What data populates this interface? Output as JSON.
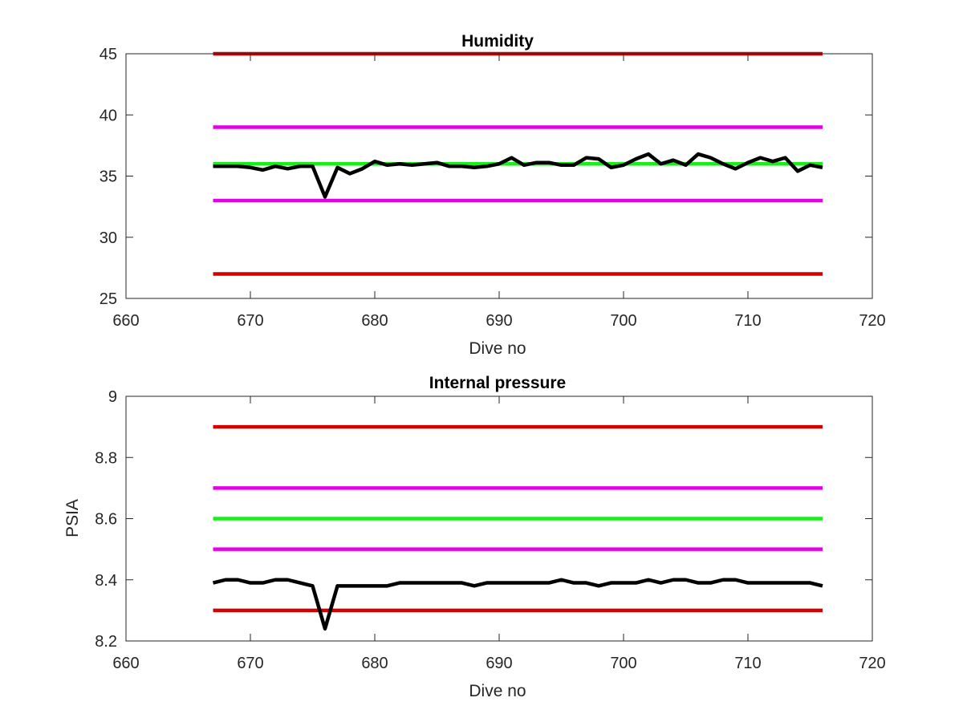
{
  "chart_data": [
    {
      "type": "line",
      "title": "Humidity",
      "xlabel": "Dive no",
      "ylabel": "",
      "xlim": [
        660,
        720
      ],
      "ylim": [
        25,
        45
      ],
      "xticks": [
        660,
        670,
        680,
        690,
        700,
        710,
        720
      ],
      "yticks": [
        25,
        30,
        35,
        40,
        45
      ],
      "grid": false,
      "series": [
        {
          "color": "#d40000",
          "x": [
            667,
            716
          ],
          "y": [
            45,
            45
          ]
        },
        {
          "color": "#e600e6",
          "x": [
            667,
            716
          ],
          "y": [
            39,
            39
          ]
        },
        {
          "color": "#1aee1a",
          "x": [
            667,
            716
          ],
          "y": [
            36,
            36
          ]
        },
        {
          "color": "#e600e6",
          "x": [
            667,
            716
          ],
          "y": [
            33,
            33
          ]
        },
        {
          "color": "#d40000",
          "x": [
            667,
            716
          ],
          "y": [
            27,
            27
          ]
        },
        {
          "color": "#000000",
          "x": [
            667,
            668,
            669,
            670,
            671,
            672,
            673,
            674,
            675,
            676,
            677,
            678,
            679,
            680,
            681,
            682,
            683,
            684,
            685,
            686,
            687,
            688,
            689,
            690,
            691,
            692,
            693,
            694,
            695,
            696,
            697,
            698,
            699,
            700,
            701,
            702,
            703,
            704,
            705,
            706,
            707,
            708,
            709,
            710,
            711,
            712,
            713,
            714,
            715,
            716
          ],
          "y": [
            35.8,
            35.8,
            35.8,
            35.7,
            35.5,
            35.8,
            35.6,
            35.8,
            35.8,
            33.3,
            35.7,
            35.2,
            35.6,
            36.2,
            35.9,
            36.0,
            35.9,
            36.0,
            36.1,
            35.8,
            35.8,
            35.7,
            35.8,
            36.0,
            36.5,
            35.9,
            36.1,
            36.1,
            35.9,
            35.9,
            36.5,
            36.4,
            35.7,
            35.9,
            36.4,
            36.8,
            36.0,
            36.3,
            35.9,
            36.8,
            36.5,
            36.0,
            35.6,
            36.1,
            36.5,
            36.2,
            36.5,
            35.4,
            35.9,
            35.7
          ]
        }
      ]
    },
    {
      "type": "line",
      "title": "Internal pressure",
      "xlabel": "Dive no",
      "ylabel": "PSIA",
      "xlim": [
        660,
        720
      ],
      "ylim": [
        8.2,
        9
      ],
      "xticks": [
        660,
        670,
        680,
        690,
        700,
        710,
        720
      ],
      "yticks": [
        "8.2",
        "8.4",
        "8.6",
        "8.8",
        "9"
      ],
      "grid": false,
      "series": [
        {
          "color": "#d40000",
          "x": [
            667,
            716
          ],
          "y": [
            8.9,
            8.9
          ]
        },
        {
          "color": "#e600e6",
          "x": [
            667,
            716
          ],
          "y": [
            8.7,
            8.7
          ]
        },
        {
          "color": "#1aee1a",
          "x": [
            667,
            716
          ],
          "y": [
            8.6,
            8.6
          ]
        },
        {
          "color": "#e600e6",
          "x": [
            667,
            716
          ],
          "y": [
            8.5,
            8.5
          ]
        },
        {
          "color": "#d40000",
          "x": [
            667,
            716
          ],
          "y": [
            8.3,
            8.3
          ]
        },
        {
          "color": "#000000",
          "x": [
            667,
            668,
            669,
            670,
            671,
            672,
            673,
            674,
            675,
            676,
            677,
            678,
            679,
            680,
            681,
            682,
            683,
            684,
            685,
            686,
            687,
            688,
            689,
            690,
            691,
            692,
            693,
            694,
            695,
            696,
            697,
            698,
            699,
            700,
            701,
            702,
            703,
            704,
            705,
            706,
            707,
            708,
            709,
            710,
            711,
            712,
            713,
            714,
            715,
            716
          ],
          "y": [
            8.39,
            8.4,
            8.4,
            8.39,
            8.39,
            8.4,
            8.4,
            8.39,
            8.38,
            8.24,
            8.38,
            8.38,
            8.38,
            8.38,
            8.38,
            8.39,
            8.39,
            8.39,
            8.39,
            8.39,
            8.39,
            8.38,
            8.39,
            8.39,
            8.39,
            8.39,
            8.39,
            8.39,
            8.4,
            8.39,
            8.39,
            8.38,
            8.39,
            8.39,
            8.39,
            8.4,
            8.39,
            8.4,
            8.4,
            8.39,
            8.39,
            8.4,
            8.4,
            8.39,
            8.39,
            8.39,
            8.39,
            8.39,
            8.39,
            8.38
          ]
        }
      ]
    }
  ]
}
